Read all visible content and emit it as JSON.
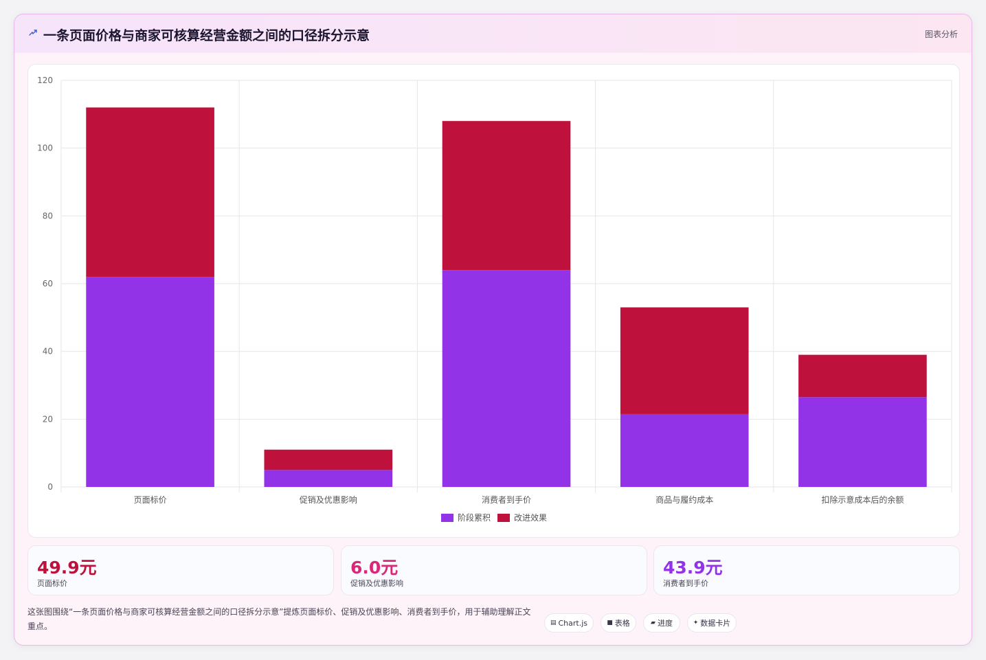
{
  "header": {
    "icon": "lightning-icon",
    "title": "一条页面价格与商家可核算经营金额之间的口径拆分示意",
    "right_label": "图表分析"
  },
  "colors": {
    "series_a": "#9333e8",
    "series_b": "#be123c",
    "kpi1": "#be123c",
    "kpi2": "#db2777",
    "kpi3": "#9333e8"
  },
  "chart_data": {
    "type": "bar",
    "stacked": true,
    "categories": [
      "页面标价",
      "促销及优惠影响",
      "消费者到手价",
      "商品与履约成本",
      "扣除示意成本后的余额"
    ],
    "series": [
      {
        "name": "阶段累积",
        "values": [
          62,
          5,
          64,
          21.5,
          26.5
        ]
      },
      {
        "name": "改进效果",
        "values": [
          50,
          6,
          44,
          31.5,
          12.5
        ]
      }
    ],
    "ylim": [
      0,
      120
    ],
    "yticks": [
      "0",
      "20",
      "40",
      "60",
      "80",
      "100",
      "120"
    ],
    "grid": true,
    "legend_position": "bottom"
  },
  "kpis": [
    {
      "value": "49.9元",
      "label": "页面标价"
    },
    {
      "value": "6.0元",
      "label": "促销及优惠影响"
    },
    {
      "value": "43.9元",
      "label": "消费者到手价"
    }
  ],
  "footer": {
    "description": "这张图围绕“一条页面价格与商家可核算经营金额之间的口径拆分示意”提炼页面标价、促销及优惠影响、消费者到手价，用于辅助理解正文重点。",
    "chips": [
      {
        "icon": "chart-icon",
        "label": "Chart.js"
      },
      {
        "icon": "table-icon",
        "label": "表格"
      },
      {
        "icon": "progress-icon",
        "label": "进度"
      },
      {
        "icon": "sparkle-icon",
        "label": "数据卡片"
      }
    ]
  }
}
